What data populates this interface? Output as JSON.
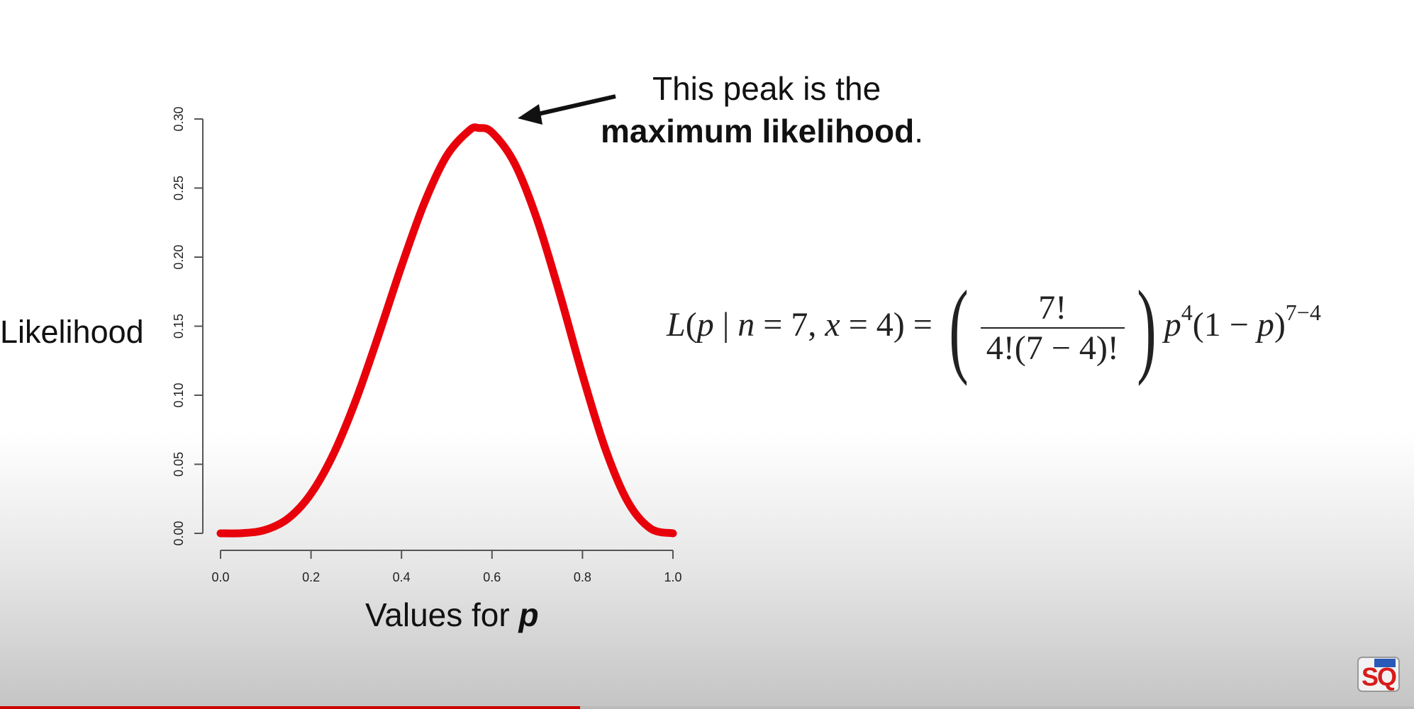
{
  "chart_data": {
    "type": "line",
    "title": "",
    "xlabel_prefix": "Values for ",
    "xlabel_var": "p",
    "ylabel": "Likelihood",
    "xlim": [
      0,
      1
    ],
    "ylim": [
      0,
      0.3
    ],
    "x_ticks": [
      "0.0",
      "0.2",
      "0.4",
      "0.6",
      "0.8",
      "1.0"
    ],
    "y_ticks": [
      "0.00",
      "0.05",
      "0.10",
      "0.15",
      "0.20",
      "0.25",
      "0.30"
    ],
    "grid": false,
    "series": [
      {
        "color": "#e8000b",
        "x": [
          0.0,
          0.05,
          0.1,
          0.15,
          0.2,
          0.25,
          0.3,
          0.35,
          0.4,
          0.45,
          0.5,
          0.55,
          0.571,
          0.6,
          0.65,
          0.7,
          0.75,
          0.8,
          0.85,
          0.9,
          0.95,
          1.0
        ],
        "y": [
          0.0,
          0.0002,
          0.0026,
          0.0109,
          0.0287,
          0.0577,
          0.0972,
          0.1442,
          0.1935,
          0.2388,
          0.2734,
          0.2918,
          0.2935,
          0.2903,
          0.2679,
          0.2269,
          0.173,
          0.1147,
          0.0617,
          0.023,
          0.0036,
          0.0
        ]
      }
    ]
  },
  "annotation": {
    "line1": "This peak is the",
    "line2_bold": "maximum likelihood",
    "line2_end": "."
  },
  "formula": {
    "lhs_L": "L",
    "lhs_args_open": "(",
    "lhs_p": "p",
    "lhs_bar": " | ",
    "lhs_n": "n",
    "lhs_eq1": " = 7, ",
    "lhs_x": "x",
    "lhs_eq2": " = 4)",
    "equals": " = ",
    "paren_open": "(",
    "numerator": "7!",
    "denominator": "4!(7 − 4)!",
    "paren_close": ")",
    "p1": "p",
    "exp1": "4",
    "mid": "(1 − ",
    "p2": "p",
    "close": ")",
    "exp2": "7−4"
  },
  "video_progress": 0.41
}
